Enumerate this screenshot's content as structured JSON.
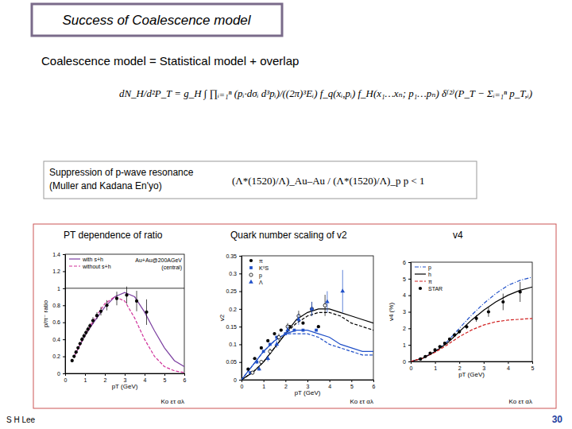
{
  "slide": {
    "title": "Success of Coalescence model",
    "subtitle": "Coalescence model = Statistical model + overlap",
    "formula": "dN_H/d²P_T = g_H ∫ ∏ᵢ₌₁ⁿ (pᵢ·dσᵢ d³pᵢ)/((2π)³Eᵢ) f_q(xᵢ,pᵢ) f_H(x₁…xₙ; p₁…pₙ) δ⁽²⁾(P_T − Σᵢ₌₁ⁿ p_T,ᵢ)",
    "box_text": [
      "Suppression of p-wave resonance",
      "(Muller and Kadana En'yo)"
    ],
    "ratio": "(Λ*(1520)/Λ)_Au–Au / (Λ*(1520)/Λ)_p p  < 1",
    "author": "S H Lee",
    "page": 30
  },
  "chart_data": [
    {
      "type": "line",
      "title": "PT dependence of ratio",
      "x_label": "pT (GeV)",
      "y_label": "p/π⁻ ratio",
      "xlim": [
        0,
        6
      ],
      "xticks": [
        0,
        1,
        2,
        3,
        4,
        5,
        6
      ],
      "ylim": [
        0,
        1.4
      ],
      "yticks": [
        0,
        0.2,
        0.4,
        0.6,
        0.8,
        1,
        1.2,
        1.4
      ],
      "legend": "upper left",
      "annotations": [
        "Au+Au@200AGeV",
        "(central)"
      ],
      "footnote": "Ko ετ αλ",
      "reference_line": 1,
      "series": [
        {
          "name": "with s+h",
          "color": "#7b3fa0",
          "type": "line",
          "line_style": "solid",
          "x": [
            0.5,
            1,
            1.5,
            2,
            2.5,
            3,
            3.5,
            4,
            4.5,
            5,
            5.5,
            6
          ],
          "values": [
            0.22,
            0.45,
            0.62,
            0.78,
            0.9,
            0.95,
            0.9,
            0.72,
            0.5,
            0.3,
            0.15,
            0.08
          ]
        },
        {
          "name": "without s+h",
          "color": "#d0309a",
          "type": "line",
          "line_style": "dashed",
          "x": [
            0.5,
            1,
            1.5,
            2,
            2.5,
            3,
            3.5,
            4,
            4.5,
            5,
            5.5,
            6
          ],
          "values": [
            0.22,
            0.45,
            0.65,
            0.82,
            0.9,
            0.85,
            0.65,
            0.4,
            0.2,
            0.08,
            0.03,
            0.01
          ]
        },
        {
          "color": "#000000",
          "type": "scatter",
          "marker": "circle",
          "x": [
            0.35,
            0.45,
            0.55,
            0.65,
            0.75,
            0.85,
            0.95,
            1.05,
            1.15,
            1.25,
            1.4,
            1.6,
            1.8,
            2.1,
            2.6,
            3.1,
            3.6,
            4.1
          ],
          "values": [
            0.15,
            0.2,
            0.25,
            0.3,
            0.35,
            0.4,
            0.44,
            0.48,
            0.52,
            0.56,
            0.62,
            0.68,
            0.73,
            0.8,
            0.88,
            0.92,
            0.85,
            0.72
          ],
          "errors": [
            0.02,
            0.02,
            0.02,
            0.02,
            0.02,
            0.03,
            0.03,
            0.03,
            0.03,
            0.03,
            0.04,
            0.04,
            0.05,
            0.06,
            0.08,
            0.1,
            0.12,
            0.15
          ]
        }
      ]
    },
    {
      "type": "line",
      "title": "Quark number scaling of v2",
      "x_label": "pT (GeV)",
      "y_label": "v2",
      "xlim": [
        0,
        6
      ],
      "xticks": [
        0,
        1,
        2,
        3,
        4,
        5,
        6
      ],
      "ylim": [
        0,
        0.35
      ],
      "yticks": [
        0,
        0.05,
        0.1,
        0.15,
        0.2,
        0.25,
        0.3,
        0.35
      ],
      "legend": "upper left",
      "footnote": "Ko ετ αλ",
      "series": [
        {
          "color": "#000000",
          "type": "line",
          "line_style": "solid",
          "x": [
            0,
            0.5,
            1,
            1.5,
            2,
            2.5,
            3,
            3.5,
            4,
            4.5,
            5,
            5.5,
            6
          ],
          "values": [
            0,
            0.02,
            0.05,
            0.09,
            0.13,
            0.17,
            0.19,
            0.2,
            0.2,
            0.19,
            0.18,
            0.17,
            0.16
          ]
        },
        {
          "color": "#000000",
          "type": "line",
          "line_style": "dashed",
          "x": [
            0,
            0.5,
            1,
            1.5,
            2,
            2.5,
            3,
            3.5,
            4,
            4.5,
            5,
            5.5,
            6
          ],
          "values": [
            0,
            0.02,
            0.05,
            0.09,
            0.13,
            0.16,
            0.18,
            0.19,
            0.19,
            0.18,
            0.16,
            0.15,
            0.14
          ]
        },
        {
          "color": "#2050c8",
          "type": "line",
          "line_style": "solid",
          "x": [
            0,
            0.5,
            1,
            1.5,
            2,
            2.5,
            3,
            3.5,
            4,
            4.5,
            5,
            5.5,
            6
          ],
          "values": [
            0,
            0.04,
            0.08,
            0.11,
            0.13,
            0.14,
            0.14,
            0.13,
            0.12,
            0.1,
            0.09,
            0.08,
            0.08
          ]
        },
        {
          "color": "#2050c8",
          "type": "line",
          "line_style": "dashed",
          "x": [
            0,
            0.5,
            1,
            1.5,
            2,
            2.5,
            3,
            3.5,
            4,
            4.5,
            5,
            5.5,
            6
          ],
          "values": [
            0,
            0.04,
            0.08,
            0.11,
            0.13,
            0.13,
            0.13,
            0.12,
            0.1,
            0.09,
            0.08,
            0.07,
            0.07
          ]
        },
        {
          "name": "π",
          "color": "#000000",
          "type": "scatter",
          "marker": "circle",
          "x": [
            0.3,
            0.6,
            0.9,
            1.2,
            1.5,
            1.8,
            2.2,
            2.8,
            3.5
          ],
          "values": [
            0.03,
            0.06,
            0.09,
            0.11,
            0.13,
            0.14,
            0.15,
            0.16,
            0.15
          ]
        },
        {
          "name": "K⁰S",
          "color": "#2050c8",
          "type": "scatter",
          "marker": "square",
          "x": [
            0.4,
            0.7,
            1,
            1.3,
            1.6,
            2,
            2.4,
            2.8,
            3.4
          ],
          "values": [
            0.02,
            0.05,
            0.08,
            0.1,
            0.12,
            0.13,
            0.14,
            0.14,
            0.14
          ]
        },
        {
          "name": "p",
          "color": "#000000",
          "type": "scatter",
          "marker": "circle-open",
          "x": [
            0.5,
            0.9,
            1.3,
            1.7,
            2.1,
            2.6,
            3.2,
            3.8
          ],
          "values": [
            0.02,
            0.05,
            0.08,
            0.12,
            0.15,
            0.18,
            0.2,
            0.21
          ],
          "errors": [
            0.005,
            0.005,
            0.008,
            0.01,
            0.01,
            0.015,
            0.02,
            0.03
          ]
        },
        {
          "name": "Λ",
          "color": "#2050c8",
          "type": "scatter",
          "marker": "triangle",
          "x": [
            0.8,
            1.2,
            1.6,
            2.1,
            2.6,
            3.2,
            3.9,
            4.6
          ],
          "values": [
            0.03,
            0.06,
            0.1,
            0.14,
            0.17,
            0.2,
            0.22,
            0.25
          ],
          "errors": [
            0.005,
            0.008,
            0.01,
            0.012,
            0.015,
            0.02,
            0.03,
            0.06
          ]
        }
      ]
    },
    {
      "type": "line",
      "title": "v4",
      "x_label": "pT (GeV)",
      "y_label": "v4 (%)",
      "xlim": [
        0,
        5
      ],
      "xticks": [
        0,
        1,
        2,
        3,
        4,
        5
      ],
      "ylim": [
        0,
        6
      ],
      "yticks": [
        0,
        1,
        2,
        3,
        4,
        5,
        6
      ],
      "legend": "upper left",
      "footnote": "Ko ετ αλ",
      "series": [
        {
          "name": "p",
          "color": "#2050c8",
          "type": "line",
          "line_style": "dashdot",
          "x": [
            0,
            0.5,
            1,
            1.5,
            2,
            2.5,
            3,
            3.5,
            4,
            4.5,
            5
          ],
          "values": [
            0,
            0.2,
            0.6,
            1.2,
            2,
            2.8,
            3.5,
            4.1,
            4.6,
            4.9,
            5.1
          ]
        },
        {
          "name": "h",
          "color": "#000000",
          "type": "line",
          "line_style": "solid",
          "x": [
            0,
            0.5,
            1,
            1.5,
            2,
            2.5,
            3,
            3.5,
            4,
            4.5,
            5
          ],
          "values": [
            0,
            0.2,
            0.6,
            1.1,
            1.8,
            2.5,
            3.1,
            3.6,
            4,
            4.3,
            4.5
          ]
        },
        {
          "name": "π",
          "color": "#d02020",
          "type": "line",
          "line_style": "dashed",
          "x": [
            0,
            0.5,
            1,
            1.5,
            2,
            2.5,
            3,
            3.5,
            4,
            4.5,
            5
          ],
          "values": [
            0,
            0.2,
            0.55,
            1,
            1.5,
            1.9,
            2.2,
            2.4,
            2.5,
            2.55,
            2.6
          ]
        },
        {
          "name": "STAR",
          "color": "#000000",
          "type": "scatter",
          "marker": "circle",
          "x": [
            0.4,
            0.6,
            0.8,
            1,
            1.2,
            1.4,
            1.6,
            1.8,
            2,
            2.3,
            2.7,
            3.2,
            3.8,
            4.5
          ],
          "values": [
            0.15,
            0.3,
            0.5,
            0.7,
            0.9,
            1.1,
            1.35,
            1.6,
            1.8,
            2.1,
            2.6,
            3,
            3.6,
            4.2
          ],
          "errors": [
            0.05,
            0.05,
            0.05,
            0.05,
            0.06,
            0.06,
            0.08,
            0.1,
            0.12,
            0.15,
            0.2,
            0.3,
            0.5,
            0.6
          ]
        }
      ]
    }
  ]
}
